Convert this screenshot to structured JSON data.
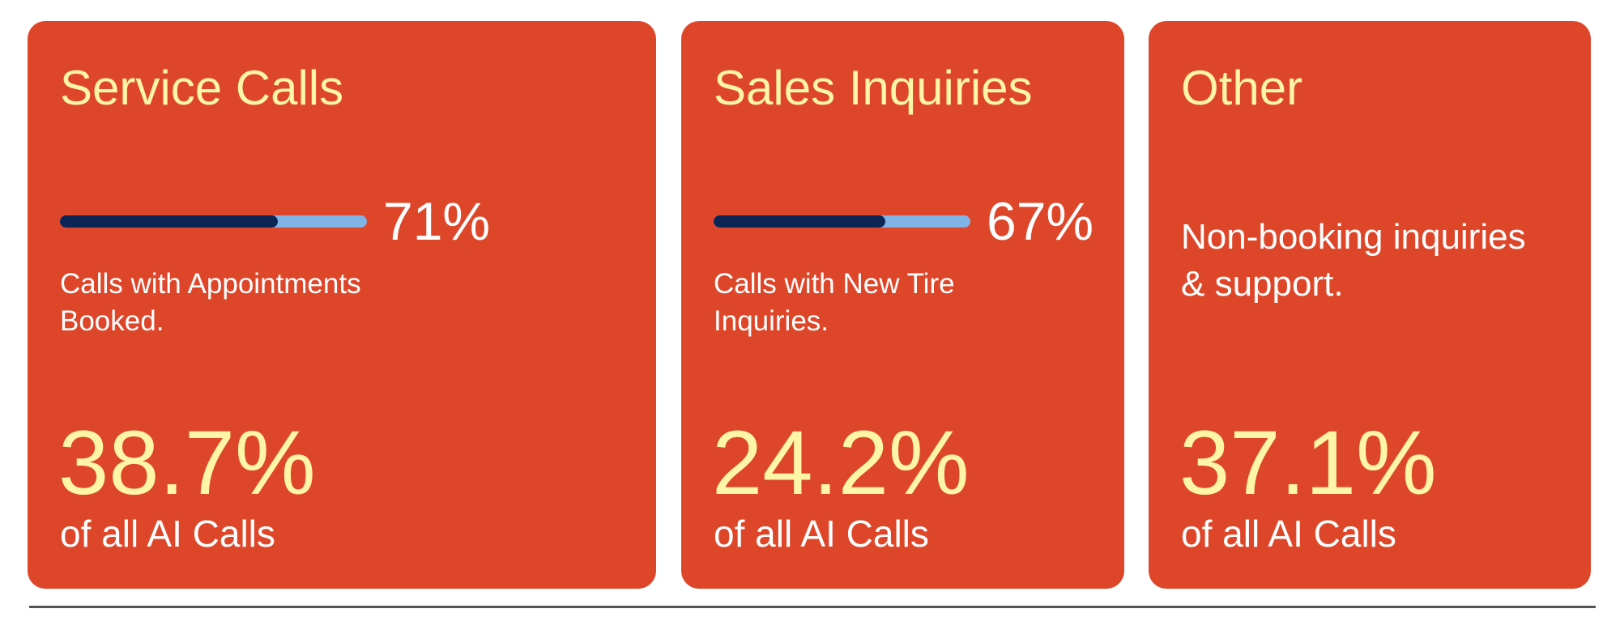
{
  "colors": {
    "card": "#DE462A",
    "title": "#FFF5A6",
    "bar_fill": "#0B2555",
    "bar_track": "#80B3E6",
    "text": "#FFFFFF"
  },
  "cards": [
    {
      "title": "Service Calls",
      "progress_percent": 71,
      "progress_label": "71%",
      "description": "Calls with Appointments Booked.",
      "share": "38.7%",
      "share_label": "of all AI Calls"
    },
    {
      "title": "Sales Inquiries",
      "progress_percent": 67,
      "progress_label": "67%",
      "description": "Calls with New Tire Inquiries.",
      "share": "24.2%",
      "share_label": "of all AI Calls"
    },
    {
      "title": "Other",
      "description": "Non-booking inquiries & support.",
      "share": "37.1%",
      "share_label": "of all AI Calls"
    }
  ]
}
